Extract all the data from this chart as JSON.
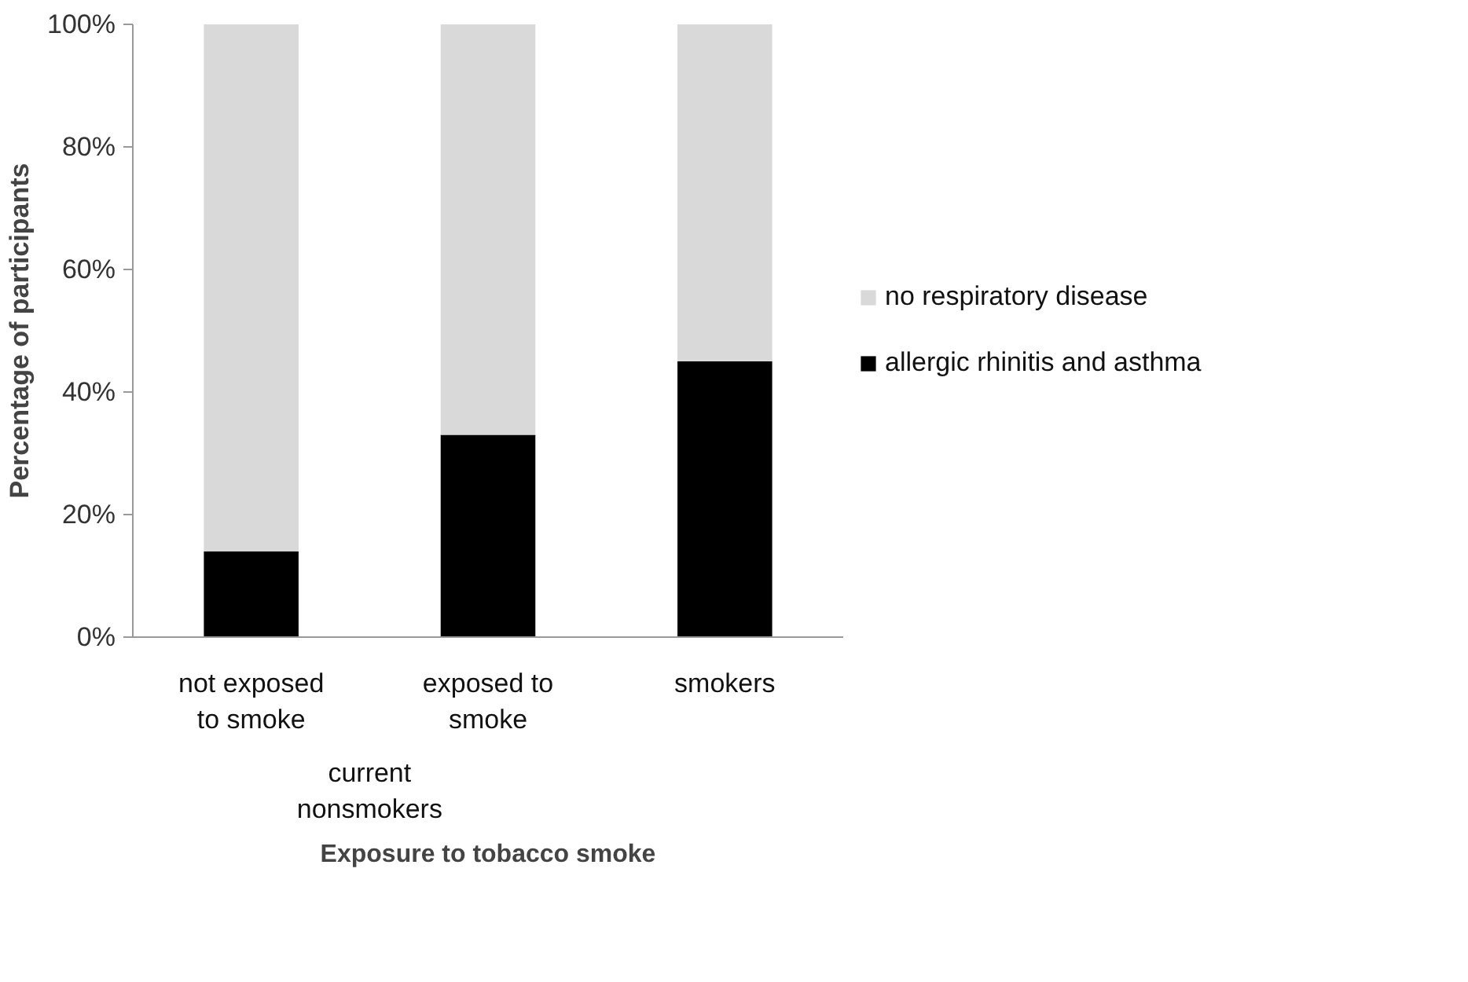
{
  "chart_data": {
    "type": "bar",
    "stacked": true,
    "categories": [
      "not exposed to smoke",
      "exposed to smoke",
      "smokers"
    ],
    "series": [
      {
        "name": "allergic rhinitis and asthma",
        "color": "#000000",
        "values": [
          14,
          33,
          45
        ]
      },
      {
        "name": "no respiratory disease",
        "color": "#d9d9d9",
        "values": [
          86,
          67,
          55
        ]
      }
    ],
    "ylim": [
      0,
      100
    ],
    "yticks": [
      {
        "value": 0,
        "label": "0%"
      },
      {
        "value": 20,
        "label": "20%"
      },
      {
        "value": 40,
        "label": "40%"
      },
      {
        "value": 60,
        "label": "60%"
      },
      {
        "value": 80,
        "label": "80%"
      },
      {
        "value": 100,
        "label": "100%"
      }
    ],
    "ylabel": "Percentage of participants",
    "xlabel": "Exposure to tobacco smoke",
    "annotations": [
      "current nonsmokers"
    ],
    "grid": false,
    "legend": "right"
  }
}
